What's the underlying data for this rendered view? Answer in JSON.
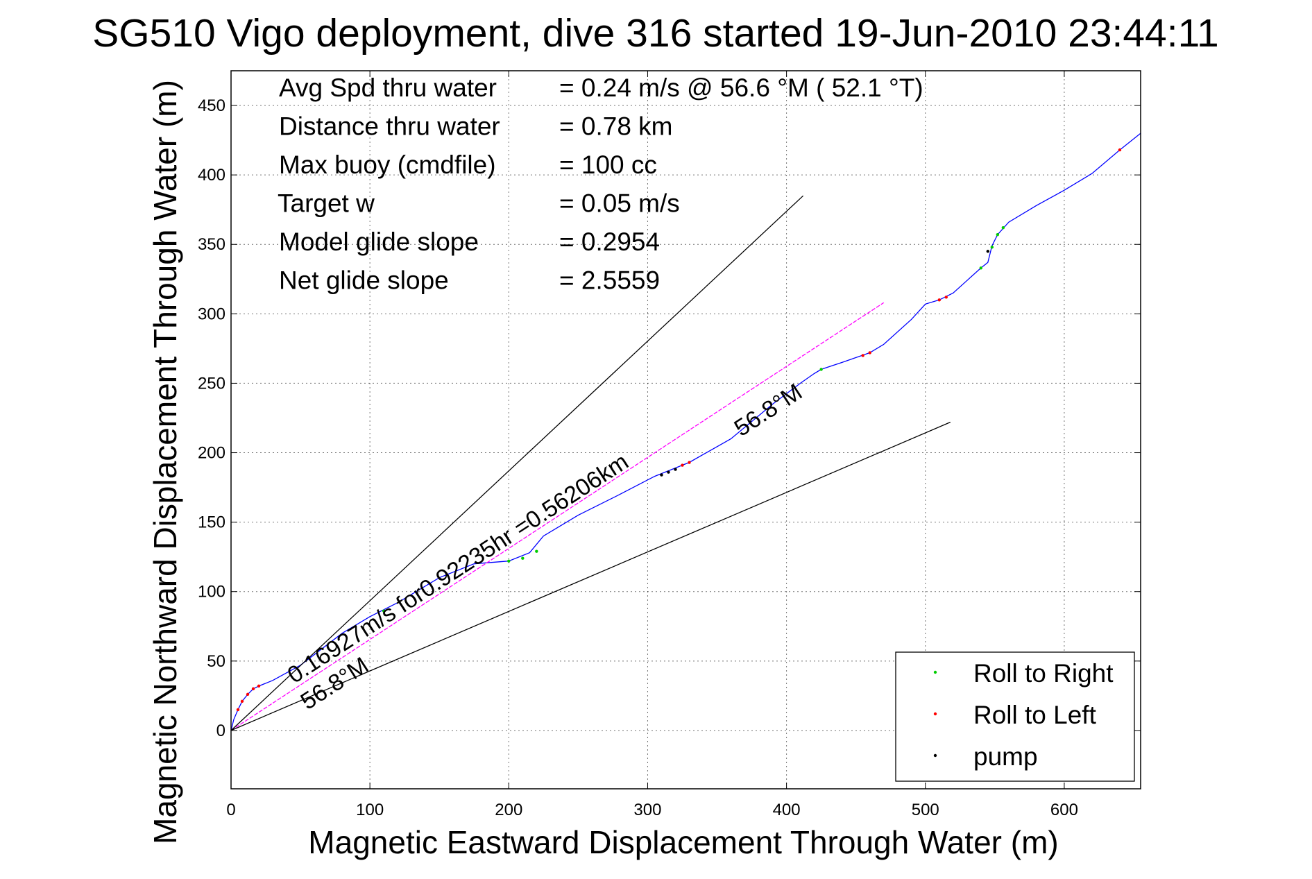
{
  "chart_data": {
    "type": "line",
    "title": "SG510 Vigo deployment, dive 316 started 19-Jun-2010 23:44:11",
    "xlabel": "Magnetic Eastward Displacement Through Water (m)",
    "ylabel": "Magnetic Northward Displacement Through Water (m)",
    "xlim": [
      0,
      655
    ],
    "ylim": [
      -42,
      475
    ],
    "xticks": [
      0,
      100,
      200,
      300,
      400,
      500,
      600
    ],
    "yticks": [
      0,
      50,
      100,
      150,
      200,
      250,
      300,
      350,
      400,
      450
    ],
    "grid": true,
    "legend_position": "bottom-right",
    "legend": [
      {
        "label": "Roll to Right",
        "color": "#00cc00"
      },
      {
        "label": "Roll to Left",
        "color": "#ff0000"
      },
      {
        "label": "pump",
        "color": "#000000"
      }
    ],
    "stats": [
      {
        "label": "Avg Spd thru water",
        "value": "=  0.24 m/s @  56.6 °M ( 52.1 °T)"
      },
      {
        "label": "Distance thru water",
        "value": "=  0.78 km"
      },
      {
        "label": "Max buoy (cmdfile)",
        "value": "= 100 cc"
      },
      {
        "label": "Target w",
        "value": "= 0.05 m/s"
      },
      {
        "label": "Model glide slope",
        "value": "= 0.2954"
      },
      {
        "label": "Net glide slope",
        "value": "= 2.5559"
      }
    ],
    "annotations": {
      "current": "0.16927m/s for0.92235hr =0.56206km",
      "heading_lower": "56.8°M",
      "heading_upper": "56.8°M"
    },
    "colors": {
      "track": "#0000ff",
      "current_line": "#ff00ff",
      "envelope": "#000000",
      "roll_right": "#00cc00",
      "roll_left": "#ff0000",
      "pump": "#000000"
    },
    "series": [
      {
        "name": "track",
        "x": [
          0,
          2,
          5,
          8,
          12,
          16,
          20,
          30,
          50,
          80,
          100,
          120,
          150,
          175,
          200,
          215,
          225,
          250,
          280,
          305,
          330,
          360,
          390,
          410,
          420,
          425,
          440,
          460,
          470,
          490,
          500,
          510,
          520,
          530,
          540,
          545,
          548,
          552,
          560,
          580,
          600,
          620,
          640,
          655
        ],
        "y": [
          0,
          8,
          15,
          21,
          26,
          30,
          32,
          36,
          47,
          70,
          82,
          92,
          110,
          120,
          122,
          128,
          140,
          155,
          170,
          183,
          193,
          210,
          235,
          250,
          257,
          260,
          265,
          272,
          278,
          296,
          307,
          310,
          315,
          324,
          333,
          337,
          349,
          357,
          366,
          378,
          389,
          401,
          418,
          430
        ]
      },
      {
        "name": "current",
        "x": [
          0,
          470
        ],
        "y": [
          0,
          308
        ]
      },
      {
        "name": "envelope-upper",
        "x": [
          0,
          412
        ],
        "y": [
          0,
          385
        ]
      },
      {
        "name": "envelope-lower",
        "x": [
          0,
          518
        ],
        "y": [
          0,
          222
        ]
      }
    ],
    "markers": {
      "roll_right": {
        "x": [
          110,
          200,
          210,
          220,
          425,
          540,
          548,
          552,
          556
        ],
        "y": [
          86,
          122,
          124,
          129,
          260,
          333,
          348,
          357,
          362
        ]
      },
      "roll_left": {
        "x": [
          5,
          8,
          12,
          16,
          20,
          325,
          330,
          455,
          460,
          510,
          515,
          640
        ],
        "y": [
          15,
          21,
          26,
          30,
          32,
          191,
          193,
          270,
          272,
          310,
          312,
          418
        ]
      },
      "pump": {
        "x": [
          310,
          315,
          320,
          545
        ],
        "y": [
          184,
          186,
          188,
          345
        ]
      }
    }
  }
}
